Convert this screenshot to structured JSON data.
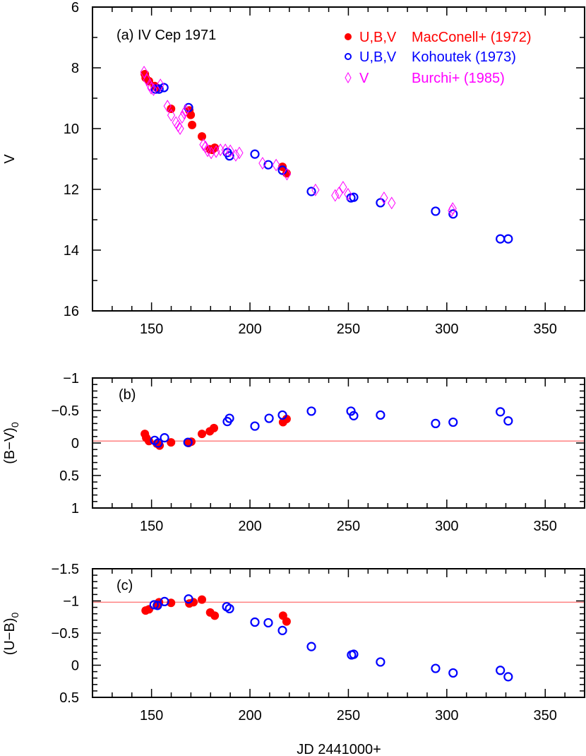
{
  "chart_data": {
    "type": "scatter",
    "x_label": "JD 2441000+",
    "x_range": [
      120,
      370
    ],
    "x_ticks": [
      "150",
      "200",
      "250",
      "300",
      "350"
    ],
    "colors": {
      "MacConell": "#ff0000",
      "Kohoutek": "#0000ff",
      "Burchi": "#ff00ff",
      "reference_line": "#ff8080"
    },
    "legend": [
      {
        "marker": "filled-circle",
        "bands": "U,B,V",
        "source": "MacConell+ (1972)",
        "color": "#ff0000"
      },
      {
        "marker": "open-circle",
        "bands": "U,B,V",
        "source": "Kohoutek (1973)",
        "color": "#0000ff"
      },
      {
        "marker": "open-diamond",
        "bands": "V",
        "source": "Burchi+ (1985)",
        "color": "#ff00ff"
      }
    ],
    "legend_placement": "top-right",
    "panels": [
      {
        "id": "a",
        "label": "(a)  IV Cep 1971",
        "y_label": "V",
        "y_label_sub": "",
        "y_range": [
          16,
          6
        ],
        "y_inverted": true,
        "y_ticks": [
          "6",
          "8",
          "10",
          "12",
          "14",
          "16"
        ],
        "series": [
          {
            "source": "MacConell+ (1972)",
            "marker": "filled-circle",
            "points": [
              [
                146.6,
                8.21
              ],
              [
                147,
                8.33
              ],
              [
                148.7,
                8.44
              ],
              [
                151.6,
                8.6
              ],
              [
                153,
                8.67
              ],
              [
                159.9,
                9.35
              ],
              [
                169.2,
                9.4
              ],
              [
                169.9,
                9.55
              ],
              [
                170.6,
                9.88
              ],
              [
                175.6,
                10.26
              ],
              [
                179.6,
                10.68
              ],
              [
                180.8,
                10.7
              ],
              [
                182.1,
                10.63
              ],
              [
                216.5,
                11.26
              ],
              [
                218.6,
                11.47
              ]
            ]
          },
          {
            "source": "Kohoutek (1973)",
            "marker": "open-circle",
            "points": [
              [
                152,
                8.7
              ],
              [
                153.8,
                8.7
              ],
              [
                156.3,
                8.65
              ],
              [
                168.8,
                9.31
              ],
              [
                188.5,
                10.79
              ],
              [
                189.6,
                10.9
              ],
              [
                202.5,
                10.84
              ],
              [
                209.3,
                11.19
              ],
              [
                216.5,
                11.37
              ],
              [
                231.2,
                12.07
              ],
              [
                251.3,
                12.28
              ],
              [
                252.7,
                12.26
              ],
              [
                266.3,
                12.44
              ],
              [
                294.3,
                12.72
              ],
              [
                303.2,
                12.81
              ],
              [
                327.2,
                13.63
              ],
              [
                331.2,
                13.63
              ]
            ]
          },
          {
            "source": "Burchi+ (1985)",
            "marker": "open-diamond",
            "points": [
              [
                146.2,
                8.14
              ],
              [
                147.7,
                8.4
              ],
              [
                149.1,
                8.56
              ],
              [
                149.8,
                8.67
              ],
              [
                151,
                8.72
              ],
              [
                154.5,
                8.56
              ],
              [
                158.1,
                9.26
              ],
              [
                160,
                9.56
              ],
              [
                162.4,
                9.8
              ],
              [
                163.5,
                9.91
              ],
              [
                164.5,
                10.0
              ],
              [
                165.5,
                9.63
              ],
              [
                166.6,
                9.49
              ],
              [
                167.4,
                9.4
              ],
              [
                176.3,
                10.53
              ],
              [
                177.4,
                10.6
              ],
              [
                178.5,
                10.73
              ],
              [
                180.3,
                10.8
              ],
              [
                182.8,
                10.76
              ],
              [
                185,
                10.7
              ],
              [
                187.5,
                10.7
              ],
              [
                190,
                10.73
              ],
              [
                192.8,
                10.88
              ],
              [
                194.6,
                10.8
              ],
              [
                206.4,
                11.14
              ],
              [
                213.3,
                11.2
              ],
              [
                218.8,
                11.5
              ],
              [
                233.3,
                12.02
              ],
              [
                243.3,
                12.2
              ],
              [
                245.2,
                12.12
              ],
              [
                247.3,
                11.93
              ],
              [
                249.8,
                12.16
              ],
              [
                268.1,
                12.28
              ],
              [
                272,
                12.45
              ],
              [
                302.5,
                12.7
              ],
              [
                303,
                12.63
              ]
            ]
          }
        ]
      },
      {
        "id": "b",
        "label": "(b)",
        "y_label": "(B−V)",
        "y_label_sub": "0",
        "y_range": [
          1,
          -1
        ],
        "y_inverted": true,
        "y_ticks": [
          "−1",
          "−0.5",
          "0",
          "0.5",
          "1"
        ],
        "reference_line": -0.03,
        "series": [
          {
            "source": "MacConell+ (1972)",
            "marker": "filled-circle",
            "points": [
              [
                146.6,
                -0.14
              ],
              [
                147.3,
                -0.08
              ],
              [
                148.7,
                -0.03
              ],
              [
                152.7,
                0.01
              ],
              [
                154.1,
                0.04
              ],
              [
                159.9,
                -0.01
              ],
              [
                168.8,
                0
              ],
              [
                170.2,
                -0.02
              ],
              [
                175.6,
                -0.14
              ],
              [
                179.6,
                -0.18
              ],
              [
                181.7,
                -0.23
              ],
              [
                216.8,
                -0.32
              ],
              [
                218.6,
                -0.37
              ]
            ]
          },
          {
            "source": "Kohoutek (1973)",
            "marker": "open-circle",
            "points": [
              [
                151.6,
                -0.04
              ],
              [
                153.4,
                0
              ],
              [
                156.6,
                -0.08
              ],
              [
                168.5,
                -0.01
              ],
              [
                188.5,
                -0.33
              ],
              [
                189.6,
                -0.38
              ],
              [
                202.5,
                -0.26
              ],
              [
                209.7,
                -0.38
              ],
              [
                216.5,
                -0.43
              ],
              [
                231.2,
                -0.49
              ],
              [
                251.3,
                -0.49
              ],
              [
                252.7,
                -0.42
              ],
              [
                266.3,
                -0.43
              ],
              [
                294.3,
                -0.3
              ],
              [
                303.2,
                -0.32
              ],
              [
                327.2,
                -0.48
              ],
              [
                331.2,
                -0.34
              ]
            ]
          }
        ]
      },
      {
        "id": "c",
        "label": "(c)",
        "y_label": "(U−B)",
        "y_label_sub": "0",
        "y_range": [
          0.5,
          -1.5
        ],
        "y_inverted": true,
        "y_ticks": [
          "−1.5",
          "−1",
          "−0.5",
          "0",
          "0.5"
        ],
        "reference_line": -0.98,
        "series": [
          {
            "source": "MacConell+ (1972)",
            "marker": "filled-circle",
            "points": [
              [
                147,
                -0.85
              ],
              [
                148.7,
                -0.87
              ],
              [
                152.7,
                -0.93
              ],
              [
                153.8,
                -0.98
              ],
              [
                159.9,
                -0.97
              ],
              [
                169.2,
                -0.96
              ],
              [
                171.3,
                -0.98
              ],
              [
                175.6,
                -1.02
              ],
              [
                179.8,
                -0.82
              ],
              [
                182.1,
                -0.77
              ],
              [
                216.8,
                -0.77
              ],
              [
                218.6,
                -0.68
              ]
            ]
          },
          {
            "source": "Kohoutek (1973)",
            "marker": "open-circle",
            "points": [
              [
                151.3,
                -0.94
              ],
              [
                153,
                -0.93
              ],
              [
                156.6,
                -0.99
              ],
              [
                168.8,
                -1.03
              ],
              [
                188.2,
                -0.91
              ],
              [
                189.6,
                -0.88
              ],
              [
                202.5,
                -0.67
              ],
              [
                209.3,
                -0.66
              ],
              [
                216.5,
                -0.54
              ],
              [
                231.2,
                -0.29
              ],
              [
                251.6,
                -0.16
              ],
              [
                252.7,
                -0.17
              ],
              [
                266.3,
                -0.05
              ],
              [
                294.3,
                0.05
              ],
              [
                303.2,
                0.12
              ],
              [
                327.2,
                0.08
              ],
              [
                331.2,
                0.18
              ]
            ]
          }
        ]
      }
    ]
  }
}
